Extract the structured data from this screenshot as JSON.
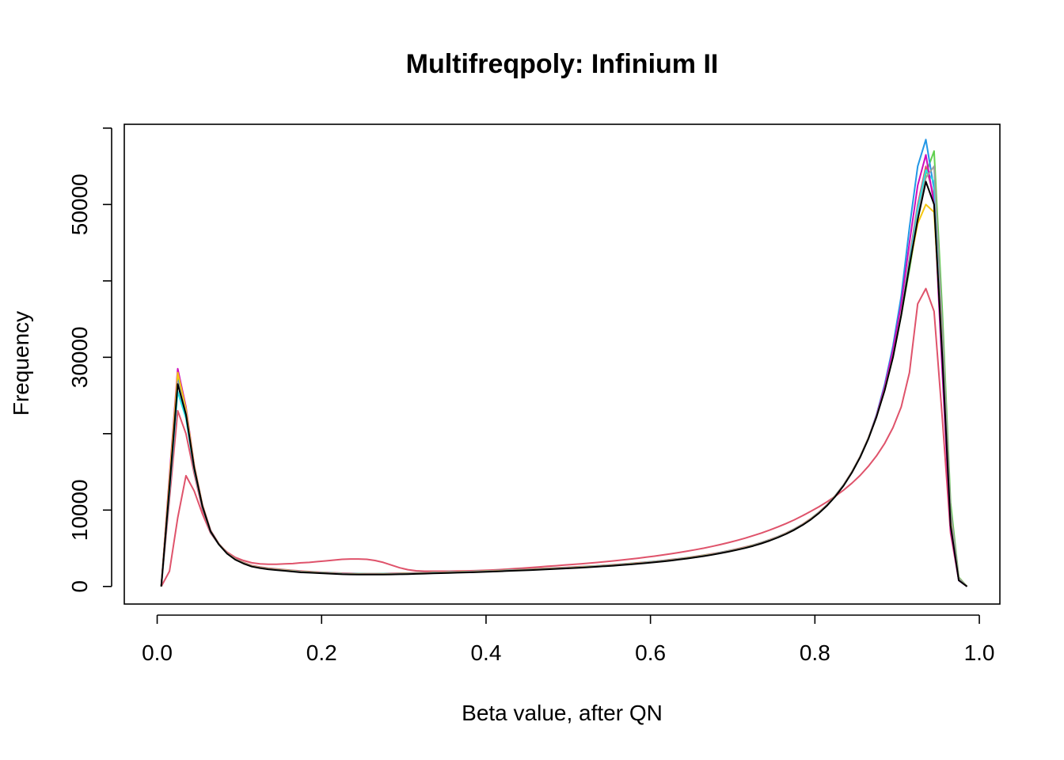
{
  "chart_data": {
    "type": "line",
    "title": "Multifreqpoly: Infinium II",
    "xlabel": "Beta value, after QN",
    "ylabel": "Frequency",
    "xlim": [
      -0.04,
      1.025
    ],
    "ylim": [
      -2300,
      60500
    ],
    "xticks": [
      0,
      0.2,
      0.4,
      0.6,
      0.8,
      1
    ],
    "xtick_labels": [
      "0.0",
      "0.2",
      "0.4",
      "0.6",
      "0.8",
      "1.0"
    ],
    "yticks": [
      0,
      10000,
      30000,
      50000
    ],
    "ytick_labels": [
      "0",
      "10000",
      "30000",
      "50000"
    ],
    "grid": false,
    "legend": "none",
    "x": [
      0.005,
      0.015,
      0.025,
      0.035,
      0.045,
      0.055,
      0.065,
      0.075,
      0.085,
      0.095,
      0.105,
      0.115,
      0.125,
      0.135,
      0.145,
      0.155,
      0.165,
      0.175,
      0.185,
      0.195,
      0.205,
      0.215,
      0.225,
      0.235,
      0.245,
      0.255,
      0.265,
      0.275,
      0.285,
      0.295,
      0.305,
      0.315,
      0.325,
      0.335,
      0.345,
      0.355,
      0.365,
      0.375,
      0.385,
      0.395,
      0.405,
      0.415,
      0.425,
      0.435,
      0.445,
      0.455,
      0.465,
      0.475,
      0.485,
      0.495,
      0.505,
      0.515,
      0.525,
      0.535,
      0.545,
      0.555,
      0.565,
      0.575,
      0.585,
      0.595,
      0.605,
      0.615,
      0.625,
      0.635,
      0.645,
      0.655,
      0.665,
      0.675,
      0.685,
      0.695,
      0.705,
      0.715,
      0.725,
      0.735,
      0.745,
      0.755,
      0.765,
      0.775,
      0.785,
      0.795,
      0.805,
      0.815,
      0.825,
      0.835,
      0.845,
      0.855,
      0.865,
      0.875,
      0.885,
      0.895,
      0.905,
      0.915,
      0.925,
      0.935,
      0.945,
      0.955,
      0.965,
      0.975,
      0.985
    ],
    "series": [
      {
        "color": "#000000",
        "values": [
          0,
          13000,
          26500,
          22500,
          15500,
          10500,
          7200,
          5500,
          4300,
          3500,
          3000,
          2600,
          2400,
          2250,
          2150,
          2050,
          1950,
          1850,
          1800,
          1750,
          1700,
          1650,
          1600,
          1580,
          1560,
          1550,
          1550,
          1560,
          1580,
          1600,
          1620,
          1650,
          1680,
          1710,
          1740,
          1770,
          1800,
          1830,
          1860,
          1900,
          1940,
          1980,
          2020,
          2060,
          2100,
          2150,
          2200,
          2250,
          2300,
          2350,
          2400,
          2460,
          2520,
          2580,
          2650,
          2720,
          2800,
          2880,
          2970,
          3060,
          3160,
          3270,
          3390,
          3520,
          3660,
          3810,
          3970,
          4150,
          4340,
          4550,
          4780,
          5030,
          5310,
          5630,
          5990,
          6400,
          6870,
          7410,
          8030,
          8750,
          9600,
          10600,
          11800,
          13200,
          14900,
          16900,
          19300,
          22200,
          25700,
          30000,
          35500,
          42000,
          48000,
          53000,
          50000,
          30000,
          8000,
          800,
          0
        ]
      },
      {
        "color": "#DF536B",
        "values": [
          0,
          11500,
          23000,
          20000,
          14800,
          10100,
          7100,
          5500,
          4400,
          3650,
          3150,
          2750,
          2550,
          2400,
          2300,
          2200,
          2100,
          2020,
          1950,
          1890,
          1840,
          1790,
          1740,
          1710,
          1690,
          1680,
          1680,
          1690,
          1710,
          1730,
          1750,
          1780,
          1810,
          1840,
          1870,
          1900,
          1930,
          1960,
          1990,
          2030,
          2070,
          2110,
          2150,
          2190,
          2230,
          2280,
          2330,
          2380,
          2430,
          2480,
          2530,
          2590,
          2650,
          2710,
          2780,
          2850,
          2930,
          3010,
          3100,
          3190,
          3290,
          3400,
          3520,
          3650,
          3790,
          3940,
          4100,
          4280,
          4470,
          4680,
          4910,
          5160,
          5440,
          5760,
          6120,
          6530,
          7000,
          7540,
          8160,
          8880,
          9730,
          10730,
          11930,
          13330,
          15030,
          17030,
          19430,
          22330,
          25830,
          30130,
          35630,
          43000,
          50000,
          55000,
          51000,
          29500,
          8200,
          900,
          0
        ]
      },
      {
        "color": "#DF536B",
        "values": [
          0,
          2000,
          9000,
          14500,
          12500,
          9500,
          7000,
          5500,
          4500,
          3800,
          3400,
          3100,
          2950,
          2900,
          2900,
          2950,
          3000,
          3100,
          3150,
          3250,
          3350,
          3450,
          3550,
          3600,
          3600,
          3550,
          3400,
          3150,
          2800,
          2450,
          2200,
          2050,
          2000,
          2000,
          2000,
          2000,
          2020,
          2040,
          2060,
          2100,
          2150,
          2200,
          2260,
          2330,
          2400,
          2480,
          2560,
          2640,
          2720,
          2800,
          2880,
          2960,
          3050,
          3140,
          3240,
          3350,
          3460,
          3580,
          3700,
          3830,
          3970,
          4120,
          4280,
          4450,
          4630,
          4820,
          5020,
          5240,
          5480,
          5740,
          6020,
          6320,
          6650,
          7000,
          7380,
          7790,
          8240,
          8730,
          9260,
          9830,
          10440,
          11100,
          11820,
          12620,
          13520,
          14540,
          15720,
          17100,
          18750,
          20800,
          23500,
          28000,
          37000,
          39000,
          36000,
          22000,
          7000,
          800,
          0
        ]
      },
      {
        "color": "#61D04F",
        "values": [
          0,
          14000,
          27500,
          23000,
          15700,
          10600,
          7300,
          5600,
          4400,
          3600,
          3100,
          2700,
          2500,
          2350,
          2250,
          2150,
          2050,
          1960,
          1900,
          1850,
          1800,
          1750,
          1700,
          1680,
          1660,
          1650,
          1650,
          1660,
          1680,
          1700,
          1720,
          1750,
          1780,
          1810,
          1840,
          1870,
          1900,
          1930,
          1960,
          2000,
          2040,
          2080,
          2120,
          2160,
          2200,
          2250,
          2300,
          2350,
          2400,
          2450,
          2500,
          2560,
          2620,
          2680,
          2750,
          2820,
          2900,
          2980,
          3070,
          3160,
          3260,
          3370,
          3490,
          3620,
          3760,
          3910,
          4070,
          4250,
          4440,
          4650,
          4880,
          5130,
          5410,
          5730,
          6090,
          6500,
          6970,
          7510,
          8130,
          8850,
          9700,
          10700,
          11900,
          13300,
          15000,
          17000,
          19400,
          22300,
          25800,
          30100,
          35500,
          41500,
          48000,
          54000,
          57000,
          36000,
          11000,
          1200,
          0
        ]
      },
      {
        "color": "#2297E6",
        "values": [
          0,
          13500,
          27000,
          22800,
          15600,
          10550,
          7250,
          5550,
          4350,
          3550,
          3050,
          2650,
          2450,
          2300,
          2200,
          2100,
          2000,
          1910,
          1850,
          1800,
          1750,
          1700,
          1650,
          1630,
          1610,
          1600,
          1600,
          1610,
          1630,
          1650,
          1670,
          1700,
          1730,
          1760,
          1790,
          1820,
          1850,
          1880,
          1910,
          1950,
          1990,
          2030,
          2070,
          2110,
          2150,
          2200,
          2250,
          2300,
          2350,
          2400,
          2450,
          2510,
          2570,
          2630,
          2700,
          2770,
          2850,
          2930,
          3020,
          3110,
          3210,
          3320,
          3440,
          3570,
          3710,
          3860,
          4020,
          4200,
          4390,
          4600,
          4830,
          5080,
          5360,
          5680,
          6040,
          6450,
          6920,
          7460,
          8080,
          8800,
          9650,
          10650,
          11850,
          13250,
          14950,
          16950,
          19350,
          22500,
          26500,
          31500,
          38000,
          47000,
          55000,
          58500,
          52000,
          30000,
          8000,
          800,
          0
        ]
      },
      {
        "color": "#28E2E5",
        "values": [
          0,
          12500,
          25500,
          22000,
          15300,
          10400,
          7150,
          5500,
          4350,
          3600,
          3100,
          2700,
          2500,
          2350,
          2250,
          2150,
          2050,
          1960,
          1900,
          1850,
          1800,
          1750,
          1700,
          1680,
          1660,
          1650,
          1650,
          1660,
          1680,
          1700,
          1720,
          1750,
          1780,
          1810,
          1840,
          1870,
          1900,
          1930,
          1960,
          2000,
          2040,
          2080,
          2120,
          2160,
          2200,
          2250,
          2300,
          2350,
          2400,
          2450,
          2500,
          2560,
          2620,
          2680,
          2750,
          2820,
          2900,
          2980,
          3070,
          3160,
          3260,
          3370,
          3490,
          3620,
          3760,
          3910,
          4070,
          4250,
          4440,
          4650,
          4880,
          5130,
          5410,
          5730,
          6090,
          6500,
          6970,
          7510,
          8130,
          8850,
          9700,
          10700,
          11900,
          13300,
          15000,
          17000,
          19400,
          22300,
          25800,
          30100,
          35600,
          42500,
          49500,
          54500,
          53000,
          32000,
          9000,
          1000,
          0
        ]
      },
      {
        "color": "#CD0BBC",
        "values": [
          0,
          14500,
          28500,
          23500,
          15900,
          10700,
          7350,
          5600,
          4400,
          3580,
          3080,
          2680,
          2480,
          2330,
          2230,
          2130,
          2030,
          1940,
          1880,
          1830,
          1780,
          1730,
          1680,
          1660,
          1640,
          1630,
          1630,
          1640,
          1660,
          1680,
          1700,
          1730,
          1760,
          1790,
          1820,
          1850,
          1880,
          1910,
          1940,
          1980,
          2020,
          2060,
          2100,
          2140,
          2180,
          2230,
          2280,
          2330,
          2380,
          2430,
          2480,
          2540,
          2600,
          2660,
          2730,
          2800,
          2880,
          2960,
          3050,
          3140,
          3240,
          3350,
          3470,
          3600,
          3740,
          3890,
          4050,
          4230,
          4420,
          4630,
          4860,
          5110,
          5390,
          5710,
          6070,
          6480,
          6950,
          7490,
          8110,
          8830,
          9680,
          10680,
          11880,
          13280,
          14980,
          16980,
          19380,
          22400,
          26200,
          31000,
          37000,
          45000,
          52500,
          56500,
          50000,
          28000,
          7500,
          800,
          0
        ]
      },
      {
        "color": "#F5C710",
        "values": [
          0,
          14000,
          28000,
          23200,
          15800,
          10650,
          7300,
          5580,
          4380,
          3570,
          3070,
          2670,
          2470,
          2320,
          2220,
          2120,
          2020,
          1930,
          1870,
          1820,
          1770,
          1720,
          1670,
          1650,
          1630,
          1620,
          1620,
          1630,
          1650,
          1670,
          1690,
          1720,
          1750,
          1780,
          1810,
          1840,
          1870,
          1900,
          1930,
          1970,
          2010,
          2050,
          2090,
          2130,
          2170,
          2220,
          2270,
          2320,
          2370,
          2420,
          2470,
          2530,
          2590,
          2650,
          2720,
          2790,
          2870,
          2950,
          3040,
          3130,
          3230,
          3340,
          3460,
          3590,
          3730,
          3880,
          4040,
          4220,
          4410,
          4620,
          4850,
          5100,
          5380,
          5700,
          6060,
          6470,
          6940,
          7480,
          8100,
          8820,
          9670,
          10670,
          11870,
          13270,
          14970,
          16970,
          19370,
          22270,
          25770,
          30070,
          35570,
          42000,
          47500,
          50000,
          49000,
          31000,
          9500,
          1100,
          0
        ]
      },
      {
        "color": "#9E9E9E",
        "values": [
          0,
          13200,
          26800,
          22700,
          15600,
          10550,
          7250,
          5550,
          4350,
          3550,
          3050,
          2650,
          2450,
          2300,
          2200,
          2100,
          2000,
          1910,
          1850,
          1800,
          1750,
          1700,
          1650,
          1630,
          1610,
          1600,
          1600,
          1610,
          1630,
          1650,
          1670,
          1700,
          1730,
          1760,
          1790,
          1820,
          1850,
          1880,
          1910,
          1950,
          1990,
          2030,
          2070,
          2110,
          2150,
          2200,
          2250,
          2300,
          2350,
          2400,
          2450,
          2510,
          2570,
          2630,
          2700,
          2770,
          2850,
          2930,
          3020,
          3110,
          3210,
          3320,
          3440,
          3570,
          3710,
          3860,
          4020,
          4200,
          4390,
          4600,
          4830,
          5080,
          5360,
          5680,
          6040,
          6450,
          6920,
          7460,
          8080,
          8800,
          9650,
          10650,
          11850,
          13250,
          14950,
          16950,
          19350,
          22250,
          25750,
          30050,
          35550,
          42000,
          48500,
          53500,
          55000,
          34000,
          10000,
          1100,
          0
        ]
      }
    ]
  }
}
